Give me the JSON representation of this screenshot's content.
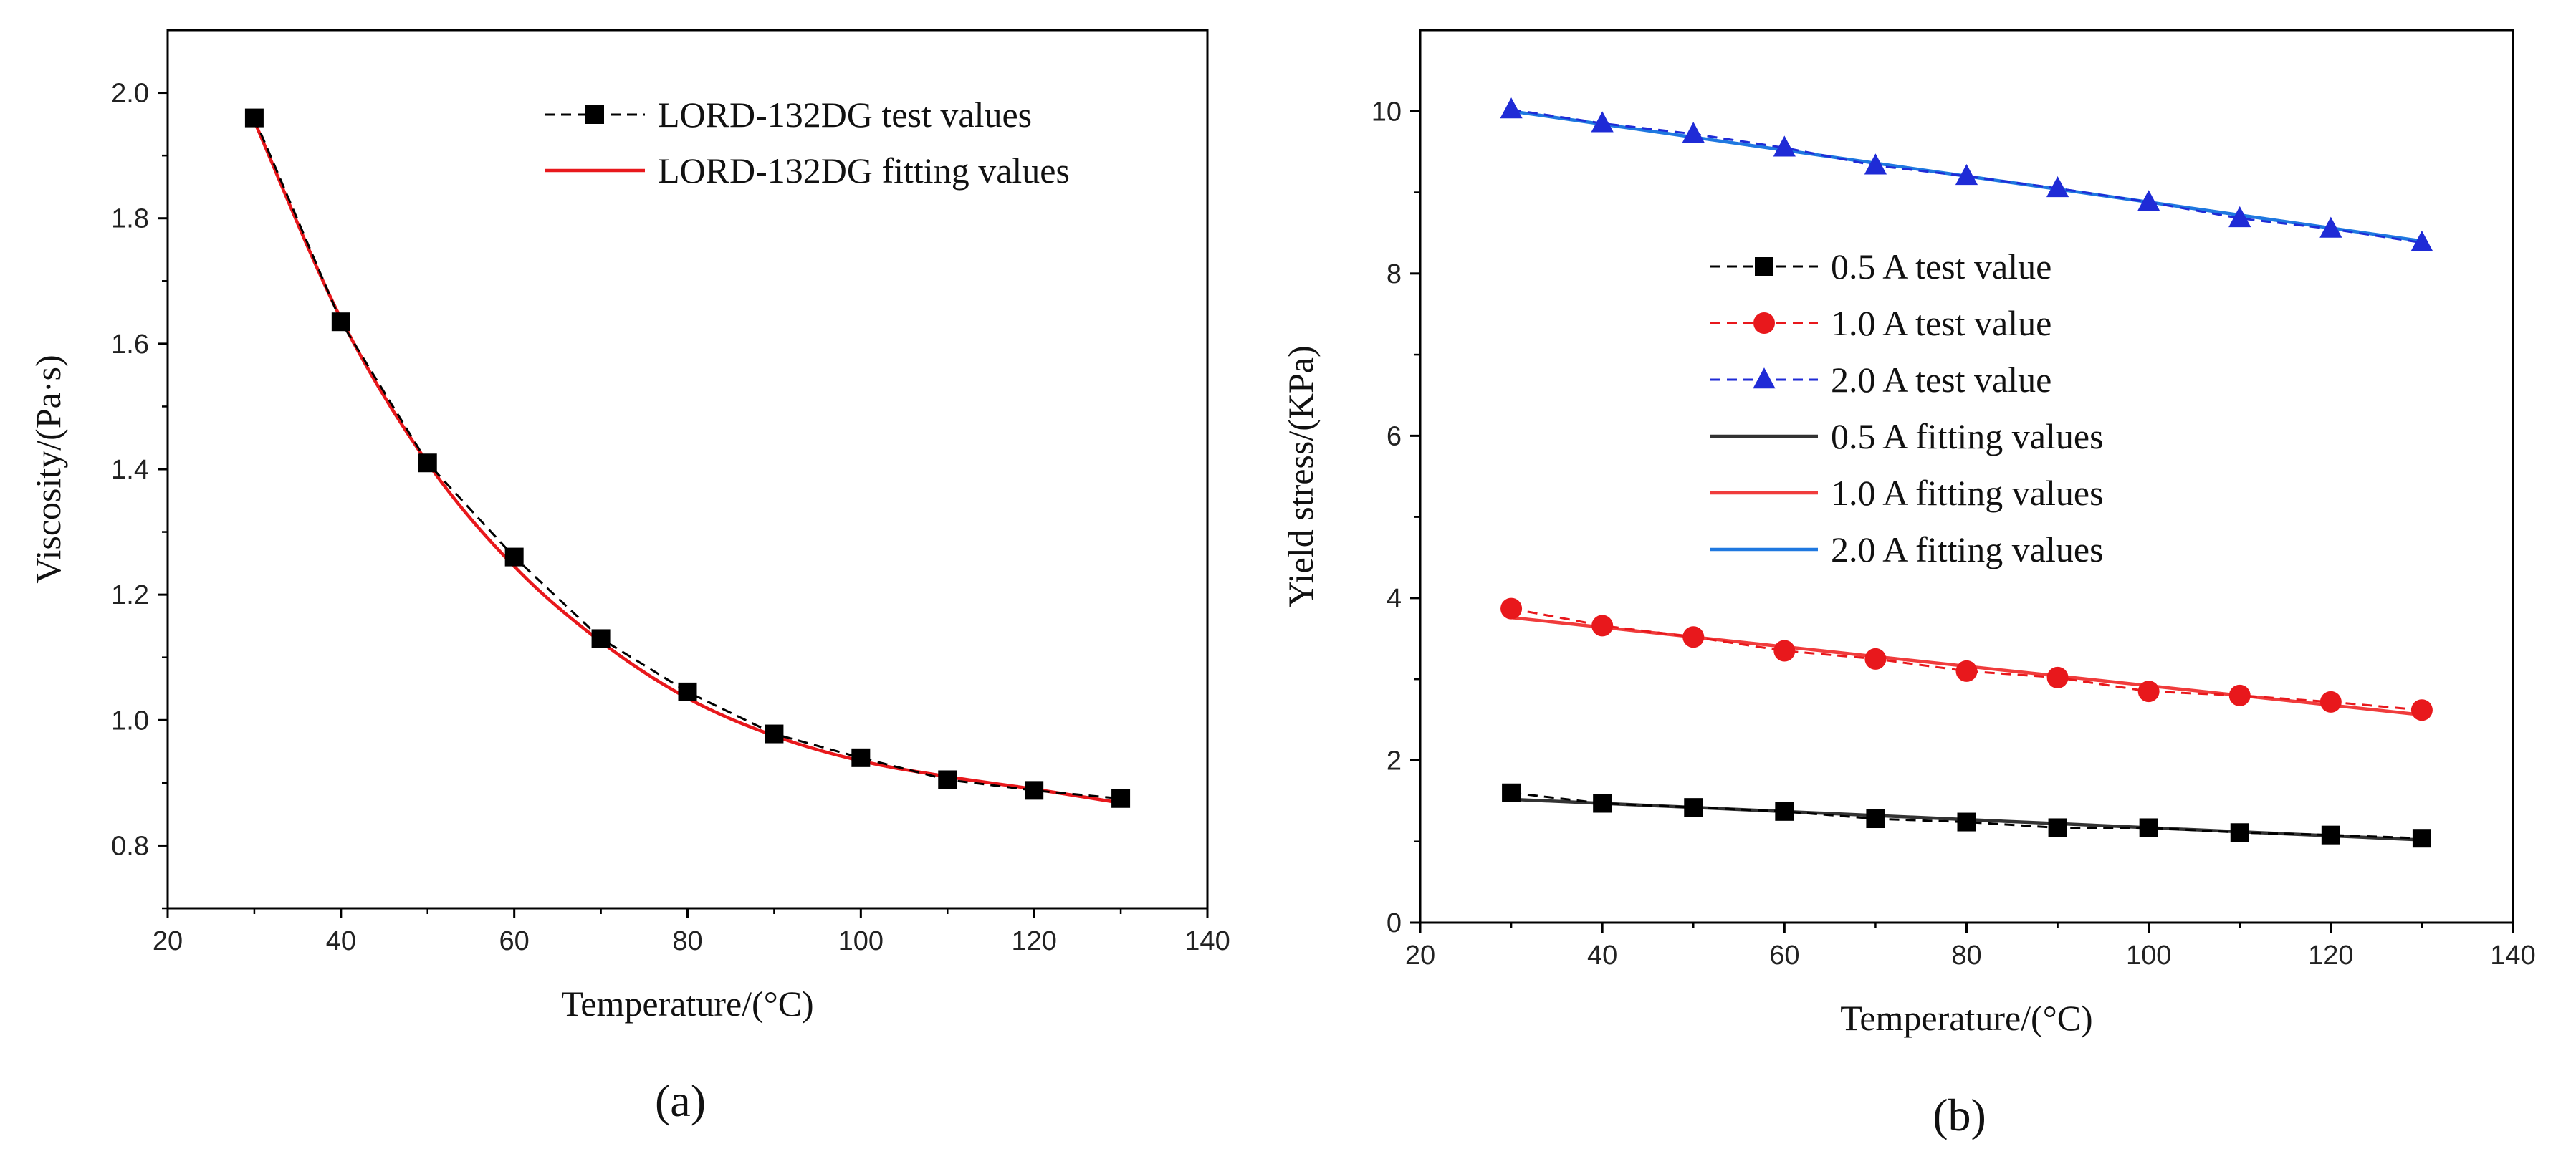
{
  "chart_data": [
    {
      "type": "line",
      "panel_label": "(a)",
      "xlabel": "Temperature/(°C)",
      "ylabel": "Viscosity/(Pa·s)",
      "xlim": [
        20,
        140
      ],
      "ylim": [
        0.7,
        2.1
      ],
      "x_ticks": [
        20,
        40,
        60,
        80,
        100,
        120,
        140
      ],
      "y_ticks": [
        0.8,
        1.0,
        1.2,
        1.4,
        1.6,
        1.8,
        2.0
      ],
      "x_tick_labels": [
        "20",
        "40",
        "60",
        "80",
        "100",
        "120",
        "140"
      ],
      "y_tick_labels": [
        "0.8",
        "1.0",
        "1.2",
        "1.4",
        "1.6",
        "1.8",
        "2.0"
      ],
      "grid": false,
      "legend_position": "top-right",
      "x": [
        30,
        40,
        50,
        60,
        70,
        80,
        90,
        100,
        110,
        120,
        130
      ],
      "series": [
        {
          "name": "LORD-132DG test values",
          "values": [
            1.96,
            1.635,
            1.41,
            1.26,
            1.13,
            1.045,
            0.978,
            0.94,
            0.905,
            0.888,
            0.875
          ],
          "color": "#000000",
          "line": "dashed",
          "marker": "square"
        },
        {
          "name": "LORD-132DG fitting values",
          "values": [
            1.955,
            1.64,
            1.41,
            1.245,
            1.125,
            1.035,
            0.975,
            0.935,
            0.91,
            0.89,
            0.868
          ],
          "color": "#e8181c",
          "line": "solid",
          "marker": "none",
          "smooth": true
        }
      ]
    },
    {
      "type": "line",
      "panel_label": "(b)",
      "xlabel": "Temperature/(°C)",
      "ylabel": "Yield stress/(KPa)",
      "xlim": [
        20,
        140
      ],
      "ylim": [
        0,
        11
      ],
      "x_ticks": [
        20,
        40,
        60,
        80,
        100,
        120,
        140
      ],
      "y_ticks": [
        0,
        2,
        4,
        6,
        8,
        10
      ],
      "x_tick_labels": [
        "20",
        "40",
        "60",
        "80",
        "100",
        "120",
        "140"
      ],
      "y_tick_labels": [
        "0",
        "2",
        "4",
        "6",
        "8",
        "10"
      ],
      "grid": false,
      "legend_position": "center",
      "x": [
        30,
        40,
        50,
        60,
        70,
        80,
        90,
        100,
        110,
        120,
        130
      ],
      "series": [
        {
          "name": "0.5 A test value",
          "values": [
            1.6,
            1.47,
            1.42,
            1.37,
            1.28,
            1.24,
            1.17,
            1.17,
            1.11,
            1.08,
            1.04
          ],
          "color": "#000000",
          "line": "dashed",
          "marker": "square"
        },
        {
          "name": "1.0 A test value",
          "values": [
            3.87,
            3.66,
            3.52,
            3.35,
            3.25,
            3.1,
            3.02,
            2.85,
            2.8,
            2.72,
            2.62
          ],
          "color": "#e8181c",
          "line": "dashed",
          "marker": "circle"
        },
        {
          "name": "2.0 A test value",
          "values": [
            10.02,
            9.85,
            9.72,
            9.55,
            9.33,
            9.2,
            9.05,
            8.88,
            8.68,
            8.55,
            8.38
          ],
          "color": "#1f2bd6",
          "line": "dashed",
          "marker": "triangle"
        },
        {
          "name": "0.5 A fitting values",
          "values": [
            1.52,
            1.47,
            1.42,
            1.37,
            1.32,
            1.27,
            1.22,
            1.17,
            1.12,
            1.07,
            1.02
          ],
          "color": "#333333",
          "line": "solid",
          "marker": "none"
        },
        {
          "name": "1.0 A fitting values",
          "values": [
            3.76,
            3.64,
            3.52,
            3.4,
            3.28,
            3.16,
            3.04,
            2.92,
            2.8,
            2.68,
            2.56
          ],
          "color": "#f03c3c",
          "line": "solid",
          "marker": "none"
        },
        {
          "name": "2.0 A fitting values",
          "values": [
            10.0,
            9.84,
            9.68,
            9.52,
            9.36,
            9.2,
            9.04,
            8.88,
            8.72,
            8.56,
            8.4
          ],
          "color": "#1f78e0",
          "line": "solid",
          "marker": "none"
        }
      ]
    }
  ]
}
